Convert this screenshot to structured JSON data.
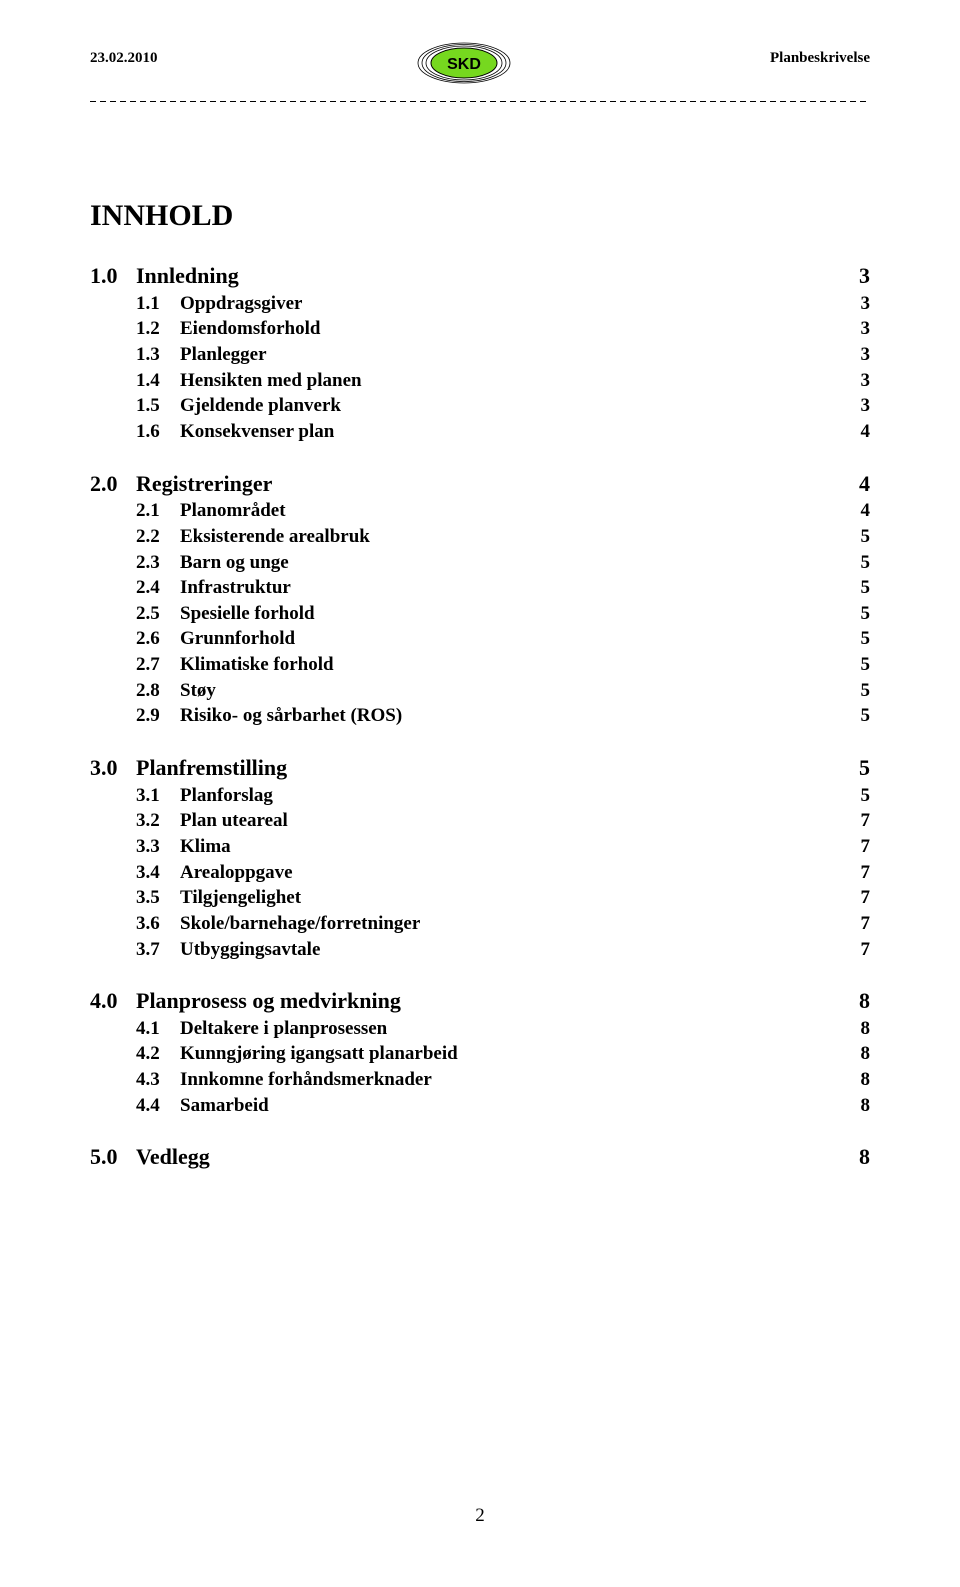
{
  "header": {
    "date": "23.02.2010",
    "doc_type": "Planbeskrivelse",
    "logo": {
      "text": "SKD",
      "fill": "#76d81f",
      "text_color": "#000000",
      "ring_color": "#000000"
    }
  },
  "title": "INNHOLD",
  "toc": [
    {
      "num": "1.0",
      "label": "Innledning",
      "page": "3",
      "subs": [
        {
          "num": "1.1",
          "label": "Oppdragsgiver",
          "page": "3"
        },
        {
          "num": "1.2",
          "label": "Eiendomsforhold",
          "page": "3"
        },
        {
          "num": "1.3",
          "label": "Planlegger",
          "page": "3"
        },
        {
          "num": "1.4",
          "label": "Hensikten med planen",
          "page": "3"
        },
        {
          "num": "1.5",
          "label": "Gjeldende planverk",
          "page": "3"
        },
        {
          "num": "1.6",
          "label": "Konsekvenser plan",
          "page": "4"
        }
      ]
    },
    {
      "num": "2.0",
      "label": "Registreringer",
      "page": "4",
      "subs": [
        {
          "num": "2.1",
          "label": "Planområdet",
          "page": "4"
        },
        {
          "num": "2.2",
          "label": "Eksisterende arealbruk",
          "page": "5"
        },
        {
          "num": "2.3",
          "label": "Barn og unge",
          "page": "5"
        },
        {
          "num": "2.4",
          "label": "Infrastruktur",
          "page": "5"
        },
        {
          "num": "2.5",
          "label": "Spesielle forhold",
          "page": "5"
        },
        {
          "num": "2.6",
          "label": "Grunnforhold",
          "page": "5"
        },
        {
          "num": "2.7",
          "label": "Klimatiske forhold",
          "page": "5"
        },
        {
          "num": "2.8",
          "label": "Støy",
          "page": "5"
        },
        {
          "num": "2.9",
          "label": "Risiko- og sårbarhet (ROS)",
          "page": "5"
        }
      ]
    },
    {
      "num": "3.0",
      "label": "Planfremstilling",
      "page": "5",
      "subs": [
        {
          "num": "3.1",
          "label": "Planforslag",
          "page": "5"
        },
        {
          "num": "3.2",
          "label": "Plan uteareal",
          "page": "7"
        },
        {
          "num": "3.3",
          "label": "Klima",
          "page": "7"
        },
        {
          "num": "3.4",
          "label": "Arealoppgave",
          "page": "7"
        },
        {
          "num": "3.5",
          "label": "Tilgjengelighet",
          "page": "7"
        },
        {
          "num": "3.6",
          "label": "Skole/barnehage/forretninger",
          "page": "7"
        },
        {
          "num": "3.7",
          "label": "Utbyggingsavtale",
          "page": "7"
        }
      ]
    },
    {
      "num": "4.0",
      "label": "Planprosess og medvirkning",
      "page": "8",
      "subs": [
        {
          "num": "4.1",
          "label": "Deltakere i planprosessen",
          "page": "8"
        },
        {
          "num": "4.2",
          "label": "Kunngjøring igangsatt planarbeid",
          "page": "8"
        },
        {
          "num": "4.3",
          "label": "Innkomne forhåndsmerknader",
          "page": "8"
        },
        {
          "num": "4.4",
          "label": "Samarbeid",
          "page": "8"
        }
      ]
    },
    {
      "num": "5.0",
      "label": "Vedlegg",
      "page": "8",
      "subs": []
    }
  ],
  "page_number": "2"
}
